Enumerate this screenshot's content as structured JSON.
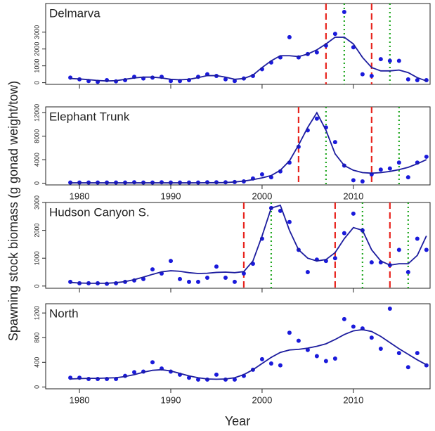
{
  "ylabel": "Spawning stock biomass (g gonad weight/tow)",
  "xlabel": "Year",
  "chart_data": [
    {
      "type": "scatter",
      "title": "Delmarva",
      "x": [
        1979,
        1980,
        1981,
        1982,
        1983,
        1984,
        1985,
        1986,
        1987,
        1988,
        1989,
        1990,
        1991,
        1992,
        1993,
        1994,
        1995,
        1996,
        1997,
        1998,
        1999,
        2000,
        2001,
        2002,
        2003,
        2004,
        2005,
        2006,
        2007,
        2008,
        2009,
        2010,
        2011,
        2012,
        2013,
        2014,
        2015,
        2016,
        2017,
        2018
      ],
      "series": [
        {
          "color": "#1a1adb",
          "mode": "points",
          "values": [
            300,
            200,
            100,
            50,
            150,
            80,
            150,
            350,
            250,
            300,
            350,
            100,
            100,
            150,
            350,
            500,
            400,
            200,
            100,
            250,
            400,
            800,
            1200,
            1500,
            2700,
            1500,
            1700,
            1800,
            2200,
            2900,
            4200,
            2100,
            500,
            400,
            1400,
            1300,
            1300,
            200,
            150,
            150
          ]
        },
        {
          "color": "#1c1c9e",
          "mode": "line",
          "values": [
            250,
            220,
            180,
            130,
            100,
            120,
            200,
            280,
            330,
            330,
            280,
            200,
            170,
            200,
            300,
            420,
            420,
            330,
            200,
            250,
            450,
            900,
            1300,
            1600,
            1600,
            1550,
            1700,
            1950,
            2300,
            2700,
            2700,
            2300,
            1500,
            900,
            700,
            700,
            750,
            600,
            300,
            100
          ]
        }
      ],
      "vlines": [
        {
          "color": "#e8251f",
          "dash": "dashed",
          "x": [
            2007,
            2012
          ]
        },
        {
          "color": "#22a822",
          "dash": "dotted",
          "x": [
            2009,
            2014
          ]
        }
      ],
      "xlim": [
        1976.3,
        2018.4
      ],
      "xticks": [
        1980,
        1990,
        2000,
        2010
      ],
      "show_xtick_labels": false,
      "ylim": [
        -100,
        4700
      ],
      "yticks": [
        0,
        1000,
        2000,
        3000
      ]
    },
    {
      "type": "scatter",
      "title": "Elephant Trunk",
      "x": [
        1979,
        1980,
        1981,
        1982,
        1983,
        1984,
        1985,
        1986,
        1987,
        1988,
        1989,
        1990,
        1991,
        1992,
        1993,
        1994,
        1995,
        1996,
        1997,
        1998,
        1999,
        2000,
        2001,
        2002,
        2003,
        2004,
        2005,
        2006,
        2007,
        2008,
        2009,
        2010,
        2011,
        2012,
        2013,
        2014,
        2015,
        2016,
        2017,
        2018
      ],
      "series": [
        {
          "color": "#1a1adb",
          "mode": "points",
          "values": [
            100,
            100,
            100,
            100,
            100,
            100,
            100,
            150,
            100,
            100,
            150,
            100,
            100,
            100,
            100,
            150,
            150,
            150,
            200,
            300,
            800,
            1500,
            1000,
            2000,
            3500,
            6200,
            9000,
            11000,
            9500,
            7000,
            3000,
            500,
            300,
            1500,
            2300,
            2500,
            3500,
            1000,
            3500,
            4500
          ]
        },
        {
          "color": "#1c1c9e",
          "mode": "line",
          "values": [
            50,
            50,
            50,
            50,
            50,
            50,
            50,
            50,
            50,
            50,
            50,
            50,
            50,
            50,
            60,
            70,
            80,
            100,
            200,
            350,
            600,
            900,
            1300,
            2200,
            3800,
            6500,
            9500,
            12000,
            9000,
            5000,
            3000,
            2200,
            1800,
            1700,
            1800,
            2000,
            2300,
            2700,
            3300,
            4000
          ]
        }
      ],
      "vlines": [
        {
          "color": "#e8251f",
          "dash": "dashed",
          "x": [
            2004,
            2012
          ]
        },
        {
          "color": "#22a822",
          "dash": "dotted",
          "x": [
            2007,
            2015
          ]
        }
      ],
      "xlim": [
        1976.3,
        2018.4
      ],
      "xticks": [
        1980,
        1990,
        2000,
        2010
      ],
      "show_xtick_labels": true,
      "ylim": [
        -300,
        13000
      ],
      "yticks": [
        0,
        4000,
        8000,
        12000
      ]
    },
    {
      "type": "scatter",
      "title": "Hudson Canyon S.",
      "x": [
        1979,
        1980,
        1981,
        1982,
        1983,
        1984,
        1985,
        1986,
        1987,
        1988,
        1989,
        1990,
        1991,
        1992,
        1993,
        1994,
        1995,
        1996,
        1997,
        1998,
        1999,
        2000,
        2001,
        2002,
        2003,
        2004,
        2005,
        2006,
        2007,
        2008,
        2009,
        2010,
        2011,
        2012,
        2013,
        2014,
        2015,
        2016,
        2017,
        2018
      ],
      "series": [
        {
          "color": "#1a1adb",
          "mode": "points",
          "values": [
            150,
            100,
            100,
            100,
            80,
            100,
            150,
            200,
            250,
            600,
            450,
            900,
            250,
            150,
            150,
            300,
            700,
            300,
            150,
            450,
            800,
            1700,
            2800,
            2700,
            2300,
            1300,
            500,
            950,
            900,
            1000,
            1900,
            2600,
            2000,
            850,
            850,
            750,
            1300,
            500,
            1700,
            1300
          ]
        },
        {
          "color": "#1c1c9e",
          "mode": "line",
          "values": [
            130,
            110,
            100,
            100,
            100,
            120,
            160,
            230,
            320,
            420,
            510,
            550,
            530,
            480,
            450,
            460,
            490,
            500,
            480,
            520,
            900,
            1800,
            2800,
            2900,
            2000,
            1300,
            1000,
            900,
            950,
            1200,
            1700,
            2100,
            2000,
            1300,
            900,
            750,
            800,
            800,
            1100,
            1800
          ]
        }
      ],
      "vlines": [
        {
          "color": "#e8251f",
          "dash": "dashed",
          "x": [
            1998,
            2008,
            2014
          ]
        },
        {
          "color": "#22a822",
          "dash": "dotted",
          "x": [
            2001,
            2011,
            2016
          ]
        }
      ],
      "xlim": [
        1976.3,
        2018.4
      ],
      "xticks": [
        1980,
        1990,
        2000,
        2010
      ],
      "show_xtick_labels": false,
      "ylim": [
        -80,
        3000
      ],
      "yticks": [
        0,
        1000,
        2000,
        3000
      ]
    },
    {
      "type": "scatter",
      "title": "North",
      "x": [
        1979,
        1980,
        1981,
        1982,
        1983,
        1984,
        1985,
        1986,
        1987,
        1988,
        1989,
        1990,
        1991,
        1992,
        1993,
        1994,
        1995,
        1996,
        1997,
        1998,
        1999,
        2000,
        2001,
        2002,
        2003,
        2004,
        2005,
        2006,
        2007,
        2008,
        2009,
        2010,
        2011,
        2012,
        2013,
        2014,
        2015,
        2016,
        2017,
        2018
      ],
      "series": [
        {
          "color": "#1a1adb",
          "mode": "points",
          "values": [
            150,
            150,
            130,
            130,
            130,
            130,
            180,
            240,
            250,
            400,
            300,
            250,
            200,
            150,
            120,
            120,
            200,
            120,
            120,
            180,
            280,
            450,
            380,
            350,
            880,
            750,
            600,
            500,
            420,
            460,
            1100,
            980,
            950,
            800,
            620,
            1270,
            550,
            320,
            550,
            350
          ]
        },
        {
          "color": "#1c1c9e",
          "mode": "line",
          "values": [
            130,
            135,
            140,
            140,
            145,
            150,
            170,
            200,
            240,
            270,
            280,
            260,
            220,
            180,
            150,
            130,
            125,
            130,
            150,
            200,
            280,
            380,
            480,
            560,
            600,
            610,
            630,
            660,
            700,
            770,
            850,
            910,
            930,
            900,
            820,
            720,
            620,
            530,
            440,
            360
          ]
        }
      ],
      "vlines": [],
      "xlim": [
        1976.3,
        2018.4
      ],
      "xticks": [
        1980,
        1990,
        2000,
        2010
      ],
      "show_xtick_labels": true,
      "ylim": [
        -30,
        1350
      ],
      "yticks": [
        0,
        400,
        800,
        1200
      ]
    }
  ]
}
